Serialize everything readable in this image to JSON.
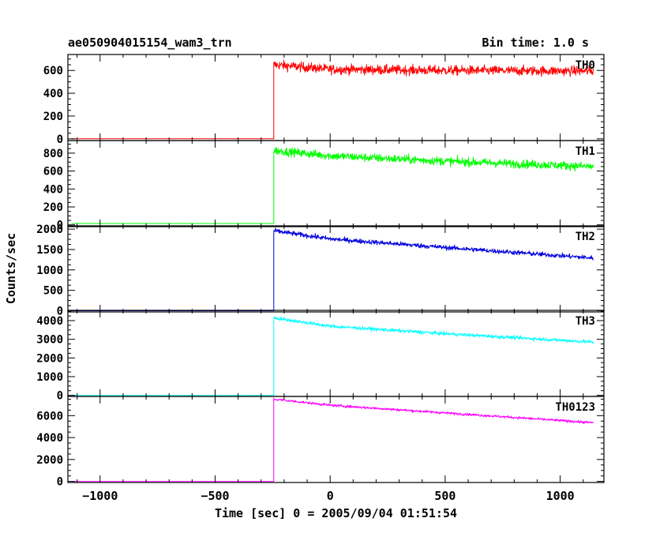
{
  "header": {
    "title": "ae050904015154_wam3_trn",
    "bin_time": "Bin time: 1.0 s"
  },
  "chart_data": {
    "type": "line",
    "title": "ae050904015154_wam3_trn",
    "subtitle": "Bin time: 1.0 s",
    "xlabel": "Time [sec] 0 = 2005/09/04 01:51:54",
    "ylabel": "Counts/sec",
    "xlim": [
      -1140,
      1190
    ],
    "xticks": [
      -1000,
      -500,
      0,
      500,
      1000
    ],
    "xtick_labels": [
      "−1000",
      "−500",
      "0",
      "500",
      "1000"
    ],
    "grid": false,
    "panels": [
      {
        "name": "TH0",
        "color": "#ff0000",
        "ylim": [
          -15,
          740
        ],
        "yticks": [
          0,
          200,
          400,
          600
        ],
        "x_start": -1125,
        "x_onset": -245,
        "x_end": 1145,
        "pre_level": 0,
        "trend_x": [
          -245,
          0,
          500,
          1145
        ],
        "trend_y": [
          650,
          610,
          600,
          595
        ],
        "noise": 40
      },
      {
        "name": "TH1",
        "color": "#00ff00",
        "ylim": [
          -20,
          940
        ],
        "yticks": [
          0,
          200,
          400,
          600,
          800
        ],
        "x_start": -1125,
        "x_onset": -245,
        "x_end": 1145,
        "pre_level": 15,
        "trend_x": [
          -245,
          0,
          500,
          1145
        ],
        "trend_y": [
          830,
          770,
          710,
          650
        ],
        "noise": 45
      },
      {
        "name": "TH2",
        "color": "#0000dd",
        "ylim": [
          -30,
          2080
        ],
        "yticks": [
          0,
          500,
          1000,
          1500,
          2000
        ],
        "x_start": -1125,
        "x_onset": -245,
        "x_end": 1145,
        "pre_level": 0,
        "trend_x": [
          -245,
          0,
          500,
          1145
        ],
        "trend_y": [
          1960,
          1760,
          1550,
          1290
        ],
        "noise": 55
      },
      {
        "name": "TH3",
        "color": "#00ffff",
        "ylim": [
          -60,
          4550
        ],
        "yticks": [
          0,
          1000,
          2000,
          3000,
          4000
        ],
        "x_start": -1125,
        "x_onset": -245,
        "x_end": 1145,
        "pre_level": 0,
        "trend_x": [
          -245,
          0,
          500,
          1145
        ],
        "trend_y": [
          4150,
          3700,
          3300,
          2850
        ],
        "noise": 90
      },
      {
        "name": "TH0123",
        "color": "#ff00ff",
        "ylim": [
          -100,
          7750
        ],
        "yticks": [
          0,
          2000,
          4000,
          6000
        ],
        "x_start": -1125,
        "x_onset": -245,
        "x_end": 1145,
        "pre_level": 0,
        "trend_x": [
          -245,
          0,
          500,
          1145
        ],
        "trend_y": [
          7500,
          6950,
          6250,
          5350
        ],
        "noise": 110
      }
    ]
  }
}
